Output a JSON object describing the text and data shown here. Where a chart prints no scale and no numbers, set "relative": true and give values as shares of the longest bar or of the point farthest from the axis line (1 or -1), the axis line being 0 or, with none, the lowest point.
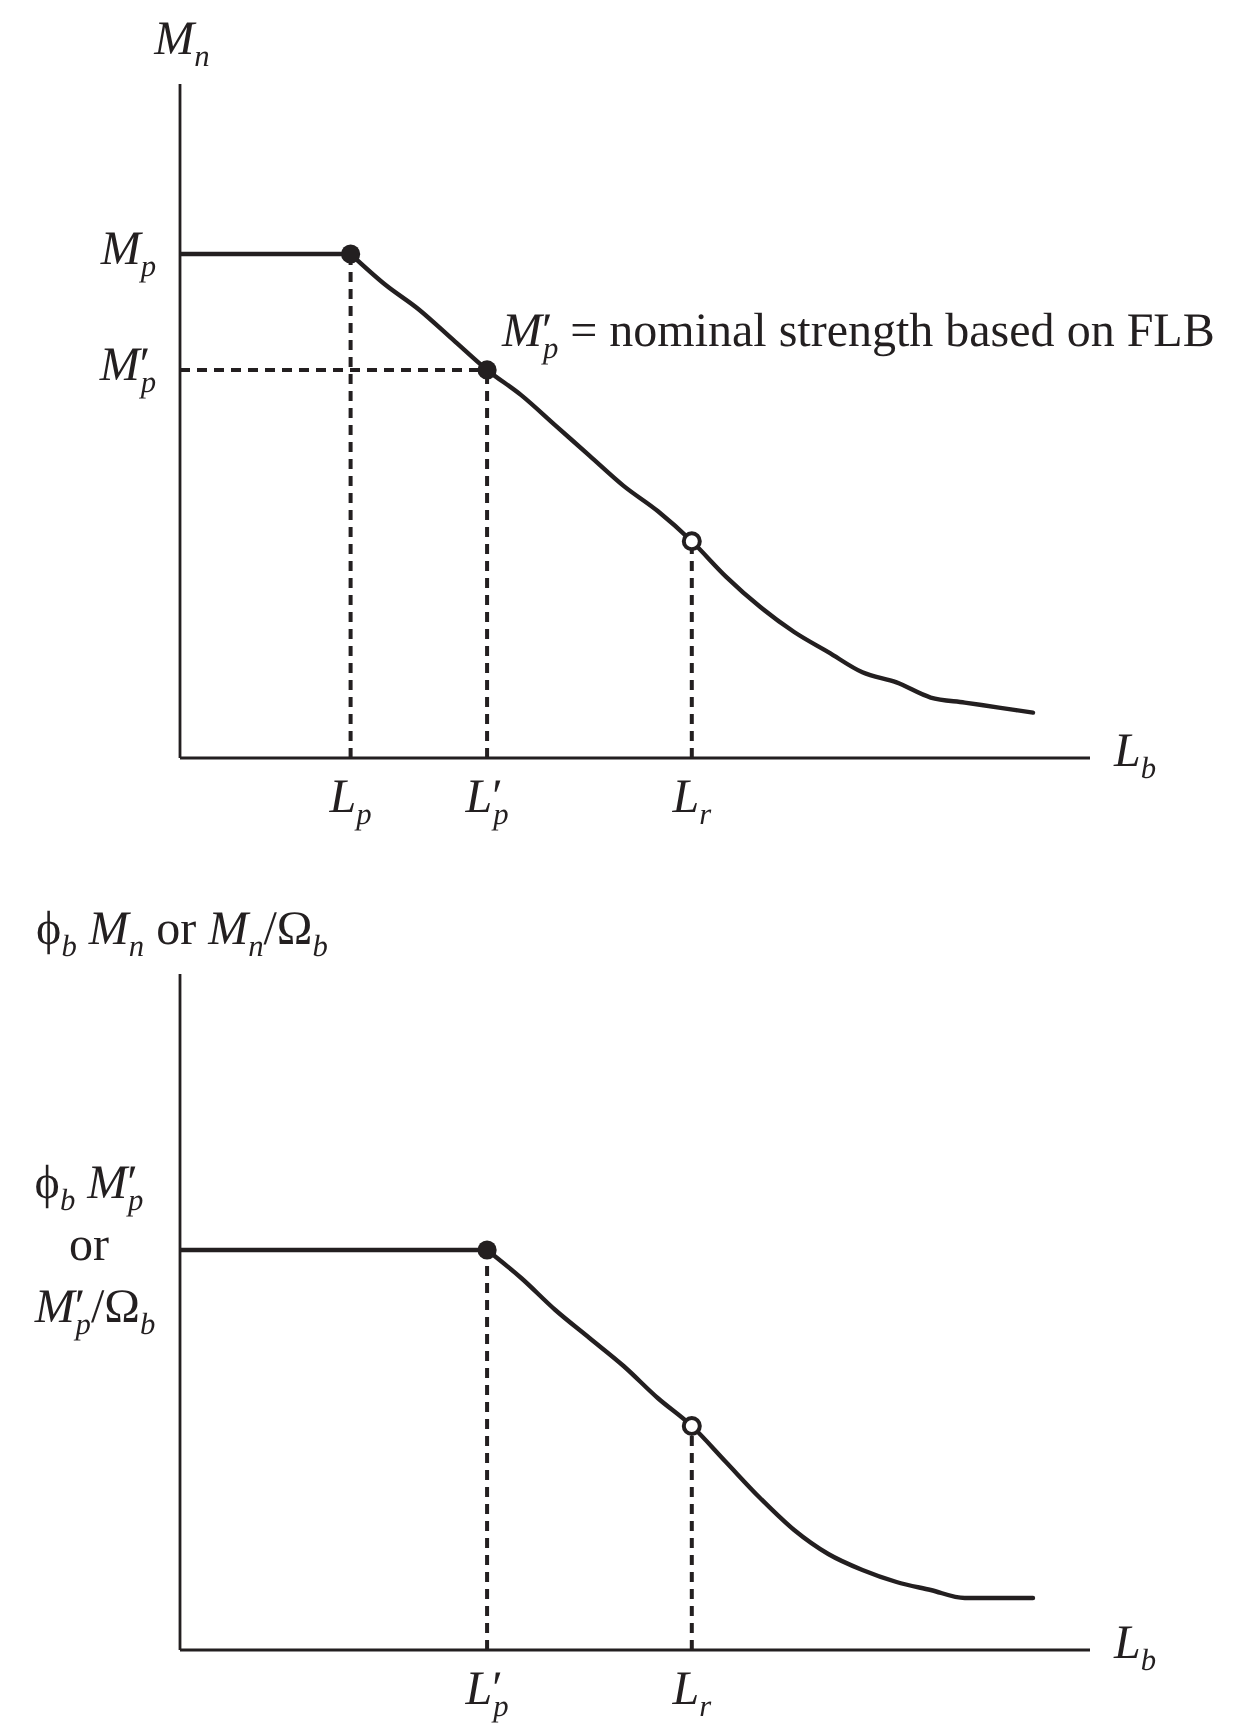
{
  "chart_data": [
    {
      "type": "line",
      "relative": true,
      "ylabel": "M$_{n}$",
      "xlabel": "L$_{b}$",
      "categories": [
        null,
        null,
        null,
        null,
        null,
        "L$_{p}$",
        null,
        null,
        null,
        "L′$_{p}$",
        null,
        null,
        null,
        null,
        null,
        "L$_{r}$",
        null,
        null,
        null,
        null,
        null,
        null,
        null,
        null,
        null,
        null
      ],
      "ref_lines": [
        {
          "axis": "y",
          "value": 1,
          "label": "M$_{p}$",
          "line_style": "solid",
          "color": "#231f20"
        },
        {
          "axis": "y",
          "value": 0.77,
          "label": "M′$_{p}$",
          "line_style": "dashed",
          "color": "#231f20"
        }
      ],
      "annotations": [
        "M′$_{p}$ = nominal strength based on FLB"
      ],
      "series": [
        {
          "line_style": "solid",
          "color": "#231f20",
          "values": [
            null,
            null,
            null,
            null,
            null,
            1,
            0.94,
            0.89,
            0.83,
            0.77,
            0.72,
            0.66,
            0.6,
            0.54,
            0.49,
            0.43,
            0.36,
            0.3,
            0.25,
            0.21,
            0.17,
            0.15,
            0.12,
            0.11,
            0.1,
            0.09
          ]
        },
        {
          "type": "lollipop",
          "line_style": "dashed",
          "marker": "circle",
          "color": "#231f20",
          "values": [
            null,
            null,
            null,
            null,
            null,
            1,
            null,
            null,
            null,
            0.77,
            null,
            null,
            null,
            null,
            null,
            null,
            null,
            null,
            null,
            null,
            null,
            null,
            null,
            null,
            null,
            null
          ]
        },
        {
          "type": "lollipop",
          "line_style": "dashed",
          "marker": "circle",
          "color": "#ffffff",
          "values": [
            null,
            null,
            null,
            null,
            null,
            null,
            null,
            null,
            null,
            null,
            null,
            null,
            null,
            null,
            null,
            0.43,
            null,
            null,
            null,
            null,
            null,
            null,
            null,
            null,
            null,
            null
          ]
        }
      ]
    },
    {
      "type": "line",
      "relative": true,
      "ylabel": "ϕ$_{b}$ M$_{n}$ or M$_{n}$/Ω$_{b}$",
      "xlabel": "L$_{b}$",
      "categories": [
        null,
        null,
        null,
        null,
        null,
        null,
        null,
        null,
        null,
        "L′$_{p}$",
        null,
        null,
        null,
        null,
        null,
        "L$_{r}$",
        null,
        null,
        null,
        null,
        null,
        null,
        null,
        null,
        null,
        null
      ],
      "ref_lines": [
        {
          "axis": "y",
          "value": 1,
          "label": "ϕ$_{b}$ M′$_{p}$\nor\nM′$_{p}$/Ω$_{b}$",
          "line_style": "solid",
          "color": "#231f20"
        }
      ],
      "series": [
        {
          "line_style": "solid",
          "color": "#231f20",
          "values": [
            null,
            null,
            null,
            null,
            null,
            null,
            null,
            null,
            null,
            1,
            0.93,
            0.85,
            0.78,
            0.71,
            0.63,
            0.56,
            0.47,
            0.38,
            0.3,
            0.24,
            0.2,
            0.17,
            0.15,
            0.13,
            0.13,
            0.13
          ]
        },
        {
          "type": "lollipop",
          "line_style": "dashed",
          "marker": "circle",
          "color": "#231f20",
          "values": [
            null,
            null,
            null,
            null,
            null,
            null,
            null,
            null,
            null,
            1,
            null,
            null,
            null,
            null,
            null,
            null,
            null,
            null,
            null,
            null,
            null,
            null,
            null,
            null,
            null,
            null
          ]
        },
        {
          "type": "lollipop",
          "line_style": "dashed",
          "marker": "circle",
          "color": "#ffffff",
          "values": [
            null,
            null,
            null,
            null,
            null,
            null,
            null,
            null,
            null,
            null,
            null,
            null,
            null,
            null,
            null,
            0.56,
            null,
            null,
            null,
            null,
            null,
            null,
            null,
            null,
            null,
            null
          ]
        }
      ]
    }
  ]
}
